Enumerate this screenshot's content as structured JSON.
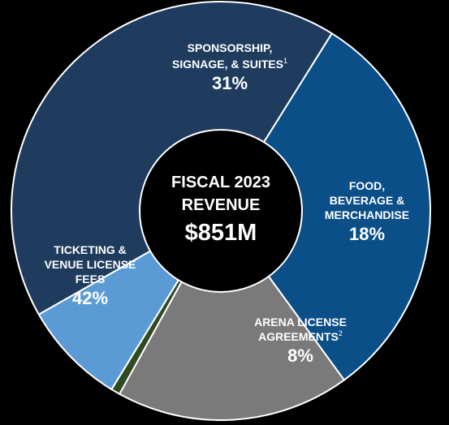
{
  "chart_data": {
    "type": "pie",
    "donut": true,
    "center": {
      "line1": "FISCAL 2023",
      "line2": "REVENUE",
      "total": "$851M"
    },
    "slices": [
      {
        "lines": [
          "SPONSORSHIP,",
          "SIGNAGE, & SUITES"
        ],
        "sup": "1",
        "percent_label": "31%",
        "value": 31,
        "color": "#0a4f88"
      },
      {
        "lines": [
          "FOOD,",
          "BEVERAGE &",
          "MERCHANDISE"
        ],
        "sup": "",
        "percent_label": "18%",
        "value": 18,
        "color": "#7a7a7a"
      },
      {
        "lines": [],
        "sup": "",
        "percent_label": "",
        "value": 0.7,
        "color": "#2f4a22"
      },
      {
        "lines": [
          "ARENA LICENSE",
          "AGREEMENTS"
        ],
        "sup": "2",
        "percent_label": "8%",
        "value": 8,
        "color": "#5b9bd5"
      },
      {
        "lines": [
          "TICKETING &",
          "VENUE LICENSE",
          "FEES"
        ],
        "sup": "",
        "percent_label": "42%",
        "value": 42,
        "color": "#1f3c5f"
      }
    ]
  }
}
